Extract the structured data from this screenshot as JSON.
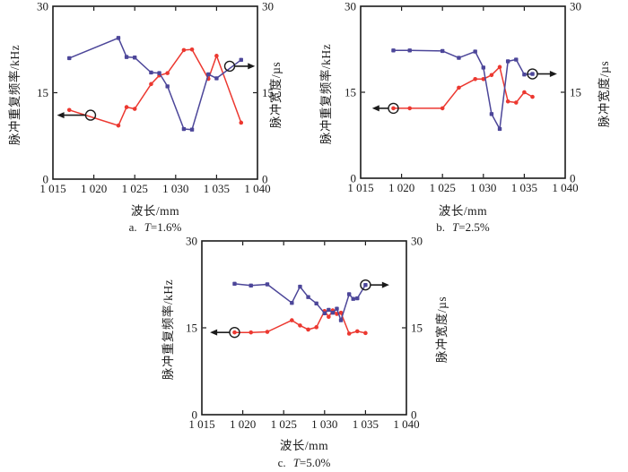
{
  "colors": {
    "ink": "#1a1a1a",
    "red_series": "#ec3830",
    "blue_series": "#4c4699",
    "background": "#ffffff"
  },
  "chart_data": [
    {
      "type": "line",
      "caption": {
        "prefix": "a.",
        "var": "T",
        "value": "=1.6%"
      },
      "xlabel": "波长/mm",
      "ylabel_left": "脉冲重复频率/kHz",
      "ylabel_right": "脉冲宽度/µs",
      "xlim": [
        1015,
        1040
      ],
      "ylim": [
        0,
        30
      ],
      "grid": false,
      "legend": "none",
      "xticks": {
        "values": [
          1015,
          1020,
          1025,
          1030,
          1035,
          1040
        ],
        "labels": [
          "1 015",
          "1 020",
          "1 025",
          "1 030",
          "1 035",
          "1 040"
        ]
      },
      "yticks": {
        "values": [
          0,
          15,
          30
        ],
        "labels": [
          "0",
          "15",
          "30"
        ]
      },
      "series": [
        {
          "name": "脉冲重复频率",
          "axis": "left",
          "color": "#ec3830",
          "marker": "circle",
          "x": [
            1017,
            1023,
            1024,
            1025,
            1027,
            1028,
            1029,
            1031,
            1032,
            1034,
            1035,
            1038
          ],
          "y": [
            12.0,
            9.3,
            12.5,
            12.2,
            16.5,
            18.0,
            18.4,
            22.4,
            22.5,
            17.4,
            21.4,
            9.8
          ]
        },
        {
          "name": "脉冲宽度",
          "axis": "right",
          "color": "#4c4699",
          "marker": "square",
          "x": [
            1017,
            1023,
            1024,
            1025,
            1027,
            1028,
            1029,
            1031,
            1032,
            1034,
            1035,
            1038
          ],
          "y": [
            21.0,
            24.5,
            21.2,
            21.1,
            18.5,
            18.4,
            16.1,
            8.7,
            8.6,
            18.2,
            17.5,
            20.7
          ]
        }
      ],
      "annotations": [
        {
          "type": "circle-arrow",
          "cx": 1019.6,
          "cy": 11.1,
          "dir": "left",
          "tipx": 1015.5
        },
        {
          "type": "circle-arrow",
          "cx": 1036.6,
          "cy": 19.6,
          "dir": "right",
          "tipx": 1039.7
        }
      ]
    },
    {
      "type": "line",
      "caption": {
        "prefix": "b.",
        "var": "T",
        "value": "=2.5%"
      },
      "xlabel": "波长/mm",
      "ylabel_left": "脉冲重复频率/kHz",
      "ylabel_right": "脉冲宽度/µs",
      "xlim": [
        1015,
        1040
      ],
      "ylim": [
        0,
        30
      ],
      "grid": false,
      "legend": "none",
      "xticks": {
        "values": [
          1015,
          1020,
          1025,
          1030,
          1035,
          1040
        ],
        "labels": [
          "1 015",
          "1 020",
          "1 025",
          "1 030",
          "1 035",
          "1 040"
        ]
      },
      "yticks": {
        "values": [
          0,
          15,
          30
        ],
        "labels": [
          "0",
          "15",
          "30"
        ]
      },
      "series": [
        {
          "name": "脉冲重复频率",
          "axis": "left",
          "color": "#ec3830",
          "marker": "circle",
          "x": [
            1019,
            1021,
            1025,
            1027,
            1029,
            1030,
            1031,
            1032,
            1033,
            1034,
            1035,
            1036
          ],
          "y": [
            12.2,
            12.2,
            12.2,
            15.8,
            17.3,
            17.3,
            18.0,
            19.4,
            13.4,
            13.2,
            15.0,
            14.2
          ]
        },
        {
          "name": "脉冲宽度",
          "axis": "right",
          "color": "#4c4699",
          "marker": "square",
          "x": [
            1019,
            1021,
            1025,
            1027,
            1029,
            1030,
            1031,
            1032,
            1033,
            1034,
            1035,
            1036
          ],
          "y": [
            22.3,
            22.3,
            22.2,
            21.0,
            22.1,
            19.3,
            11.2,
            8.6,
            20.4,
            20.7,
            18.1,
            18.2
          ]
        }
      ],
      "annotations": [
        {
          "type": "circle-arrow",
          "cx": 1019.0,
          "cy": 12.2,
          "dir": "left",
          "tipx": 1016.4
        },
        {
          "type": "circle-arrow",
          "cx": 1036.0,
          "cy": 18.2,
          "dir": "right",
          "tipx": 1039.0
        }
      ]
    },
    {
      "type": "line",
      "caption": {
        "prefix": "c.",
        "var": "T",
        "value": "=5.0%"
      },
      "xlabel": "波长/mm",
      "ylabel_left": "脉冲重复频率/kHz",
      "ylabel_right": "脉冲宽度/µs",
      "xlim": [
        1015,
        1040
      ],
      "ylim": [
        0,
        30
      ],
      "grid": false,
      "legend": "none",
      "xticks": {
        "values": [
          1015,
          1020,
          1025,
          1030,
          1035,
          1040
        ],
        "labels": [
          "1 015",
          "1 020",
          "1 025",
          "1 030",
          "1 035",
          "1 040"
        ]
      },
      "yticks": {
        "values": [
          0,
          15,
          30
        ],
        "labels": [
          "0",
          "15",
          "30"
        ]
      },
      "series": [
        {
          "name": "脉冲重复频率",
          "axis": "left",
          "color": "#ec3830",
          "marker": "circle",
          "x": [
            1019,
            1021,
            1023,
            1026,
            1027,
            1028,
            1029,
            1030,
            1030.5,
            1031,
            1031.5,
            1032,
            1033,
            1034,
            1035
          ],
          "y": [
            14.2,
            14.2,
            14.3,
            16.3,
            15.4,
            14.7,
            15.1,
            17.9,
            16.9,
            18.0,
            17.4,
            17.6,
            14.0,
            14.4,
            14.1
          ]
        },
        {
          "name": "脉冲宽度",
          "axis": "right",
          "color": "#4c4699",
          "marker": "square",
          "x": [
            1019,
            1021,
            1023,
            1026,
            1027,
            1028,
            1029,
            1030,
            1030.5,
            1031,
            1031.5,
            1032,
            1033,
            1033.5,
            1034,
            1035
          ],
          "y": [
            22.6,
            22.3,
            22.5,
            19.3,
            22.1,
            20.3,
            19.2,
            17.5,
            18.1,
            17.6,
            18.3,
            16.3,
            20.8,
            20.0,
            20.1,
            22.4
          ]
        }
      ],
      "annotations": [
        {
          "type": "circle-arrow",
          "cx": 1019.0,
          "cy": 14.2,
          "dir": "left",
          "tipx": 1016.0
        },
        {
          "type": "circle-arrow",
          "cx": 1035.0,
          "cy": 22.4,
          "dir": "right",
          "tipx": 1037.9
        }
      ]
    }
  ]
}
